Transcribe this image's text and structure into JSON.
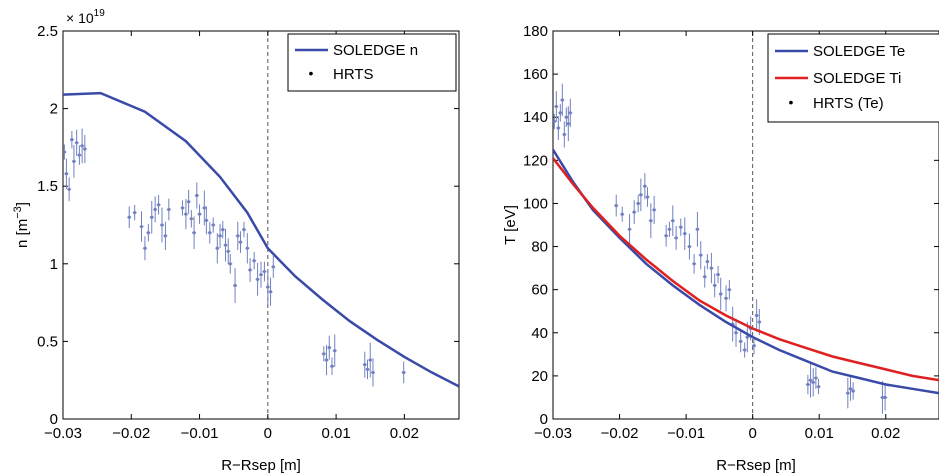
{
  "chart_data": [
    {
      "type": "line",
      "xlabel": "R−Rsep [m]",
      "ylabel_base": "n [m",
      "ylabel_sup": "−3",
      "ylabel_close": "]",
      "y_exponent_base": "× 10",
      "y_exponent_power": "19",
      "xlim": [
        -0.03,
        0.028
      ],
      "ylim": [
        0,
        2.5
      ],
      "xticks": [
        -0.03,
        -0.02,
        -0.01,
        0,
        0.01,
        0.02
      ],
      "xtick_labels": [
        "−0.03",
        "−0.02",
        "−0.01",
        "0",
        "0.01",
        "0.02"
      ],
      "yticks": [
        0,
        0.5,
        1,
        1.5,
        2,
        2.5
      ],
      "ytick_labels": [
        "0",
        "0.5",
        "1",
        "1.5",
        "2",
        "2.5"
      ],
      "grid": false,
      "legend_position": "top-right",
      "separatrix_x": 0,
      "series": [
        {
          "name": "SOLEDGE n",
          "kind": "line",
          "color": "#3a4aa8",
          "x": [
            -0.03,
            -0.0245,
            -0.018,
            -0.012,
            -0.007,
            -0.003,
            0,
            0.004,
            0.008,
            0.012,
            0.016,
            0.02,
            0.024,
            0.028
          ],
          "y": [
            2.09,
            2.1,
            1.98,
            1.79,
            1.56,
            1.33,
            1.1,
            0.92,
            0.77,
            0.63,
            0.51,
            0.4,
            0.3,
            0.21
          ]
        },
        {
          "name": "HRTS",
          "kind": "scatter",
          "color": "#7080c0",
          "x": [
            -0.0298,
            -0.0295,
            -0.0291,
            -0.0287,
            -0.0284,
            -0.028,
            -0.0276,
            -0.0272,
            -0.0268,
            -0.0203,
            -0.0195,
            -0.0185,
            -0.018,
            -0.0175,
            -0.017,
            -0.0165,
            -0.016,
            -0.0155,
            -0.015,
            -0.0145,
            -0.0125,
            -0.012,
            -0.0116,
            -0.0112,
            -0.0108,
            -0.0104,
            -0.01,
            -0.0093,
            -0.009,
            -0.0085,
            -0.008,
            -0.0074,
            -0.007,
            -0.0066,
            -0.0062,
            -0.0058,
            -0.0055,
            -0.0048,
            -0.0044,
            -0.004,
            -0.0035,
            -0.003,
            -0.0026,
            -0.002,
            -0.0015,
            -0.001,
            -0.0005,
            0,
            0.0004,
            0.0008,
            0.0082,
            0.0086,
            0.009,
            0.0094,
            0.0098,
            0.0142,
            0.0146,
            0.015,
            0.0154,
            0.0199
          ],
          "y": [
            1.72,
            1.58,
            1.48,
            1.8,
            1.66,
            1.78,
            1.7,
            1.76,
            1.74,
            1.3,
            1.33,
            1.24,
            1.1,
            1.2,
            1.3,
            1.35,
            1.38,
            1.25,
            1.18,
            1.35,
            1.36,
            1.32,
            1.4,
            1.29,
            1.2,
            1.44,
            1.32,
            1.36,
            1.28,
            1.2,
            1.25,
            1.1,
            1.18,
            1.22,
            1.12,
            1.08,
            1.0,
            0.86,
            1.18,
            1.14,
            1.22,
            1.1,
            0.96,
            1.02,
            0.9,
            0.93,
            0.95,
            0.85,
            0.82,
            0.98,
            0.42,
            0.38,
            0.46,
            0.34,
            0.44,
            0.35,
            0.32,
            0.38,
            0.3,
            0.3
          ]
        }
      ]
    },
    {
      "type": "line",
      "xlabel": "R−Rsep [m]",
      "ylabel": "T [eV]",
      "xlim": [
        -0.03,
        0.028
      ],
      "ylim": [
        0,
        180
      ],
      "xticks": [
        -0.03,
        -0.02,
        -0.01,
        0,
        0.01,
        0.02
      ],
      "xtick_labels": [
        "−0.03",
        "−0.02",
        "−0.01",
        "0",
        "0.01",
        "0.02"
      ],
      "yticks": [
        0,
        20,
        40,
        60,
        80,
        100,
        120,
        140,
        160,
        180
      ],
      "ytick_labels": [
        "0",
        "20",
        "40",
        "60",
        "80",
        "100",
        "120",
        "140",
        "160",
        "180"
      ],
      "grid": false,
      "legend_position": "top-right",
      "separatrix_x": 0,
      "series": [
        {
          "name": "SOLEDGE Te",
          "kind": "line",
          "color": "#3a4aa8",
          "x": [
            -0.03,
            -0.027,
            -0.024,
            -0.02,
            -0.016,
            -0.012,
            -0.008,
            -0.004,
            0,
            0.004,
            0.008,
            0.012,
            0.016,
            0.02,
            0.024,
            0.028
          ],
          "y": [
            125,
            110,
            97,
            84,
            72,
            62,
            53,
            45,
            38,
            32,
            27,
            22,
            19,
            16,
            14,
            12
          ]
        },
        {
          "name": "SOLEDGE Ti",
          "kind": "line",
          "color": "#e02020",
          "x": [
            -0.03,
            -0.027,
            -0.024,
            -0.02,
            -0.016,
            -0.012,
            -0.008,
            -0.004,
            0,
            0.004,
            0.008,
            0.012,
            0.016,
            0.02,
            0.024,
            0.028
          ],
          "y": [
            121,
            109,
            98,
            85,
            74,
            64,
            55,
            48,
            42,
            37,
            33,
            29,
            26,
            23,
            20,
            18
          ]
        },
        {
          "name": "HRTS (Te)",
          "kind": "scatter",
          "color": "#7080c0",
          "x": [
            -0.0298,
            -0.0295,
            -0.0292,
            -0.0289,
            -0.0286,
            -0.0283,
            -0.028,
            -0.0277,
            -0.0274,
            -0.0205,
            -0.0196,
            -0.0185,
            -0.0178,
            -0.0172,
            -0.0168,
            -0.0162,
            -0.0158,
            -0.0153,
            -0.0148,
            -0.013,
            -0.0125,
            -0.012,
            -0.0115,
            -0.0108,
            -0.0102,
            -0.0095,
            -0.0088,
            -0.0083,
            -0.0078,
            -0.0072,
            -0.0068,
            -0.0062,
            -0.0057,
            -0.0052,
            -0.0048,
            -0.004,
            -0.0035,
            -0.003,
            -0.0025,
            -0.0018,
            -0.0012,
            -0.0008,
            -0.0003,
            0.0002,
            0.0006,
            0.001,
            0.0083,
            0.0087,
            0.0091,
            0.0095,
            0.0099,
            0.0143,
            0.0147,
            0.0151,
            0.0195,
            0.0199
          ],
          "y": [
            138,
            145,
            135,
            142,
            148,
            132,
            140,
            137,
            142,
            99,
            95,
            88,
            96,
            100,
            104,
            108,
            103,
            92,
            97,
            85,
            88,
            92,
            84,
            89,
            86,
            80,
            72,
            88,
            76,
            66,
            73,
            70,
            62,
            67,
            58,
            56,
            60,
            44,
            40,
            36,
            32,
            38,
            42,
            34,
            48,
            45,
            16,
            18,
            17,
            19,
            15,
            12,
            14,
            13,
            10,
            10
          ]
        }
      ]
    }
  ]
}
